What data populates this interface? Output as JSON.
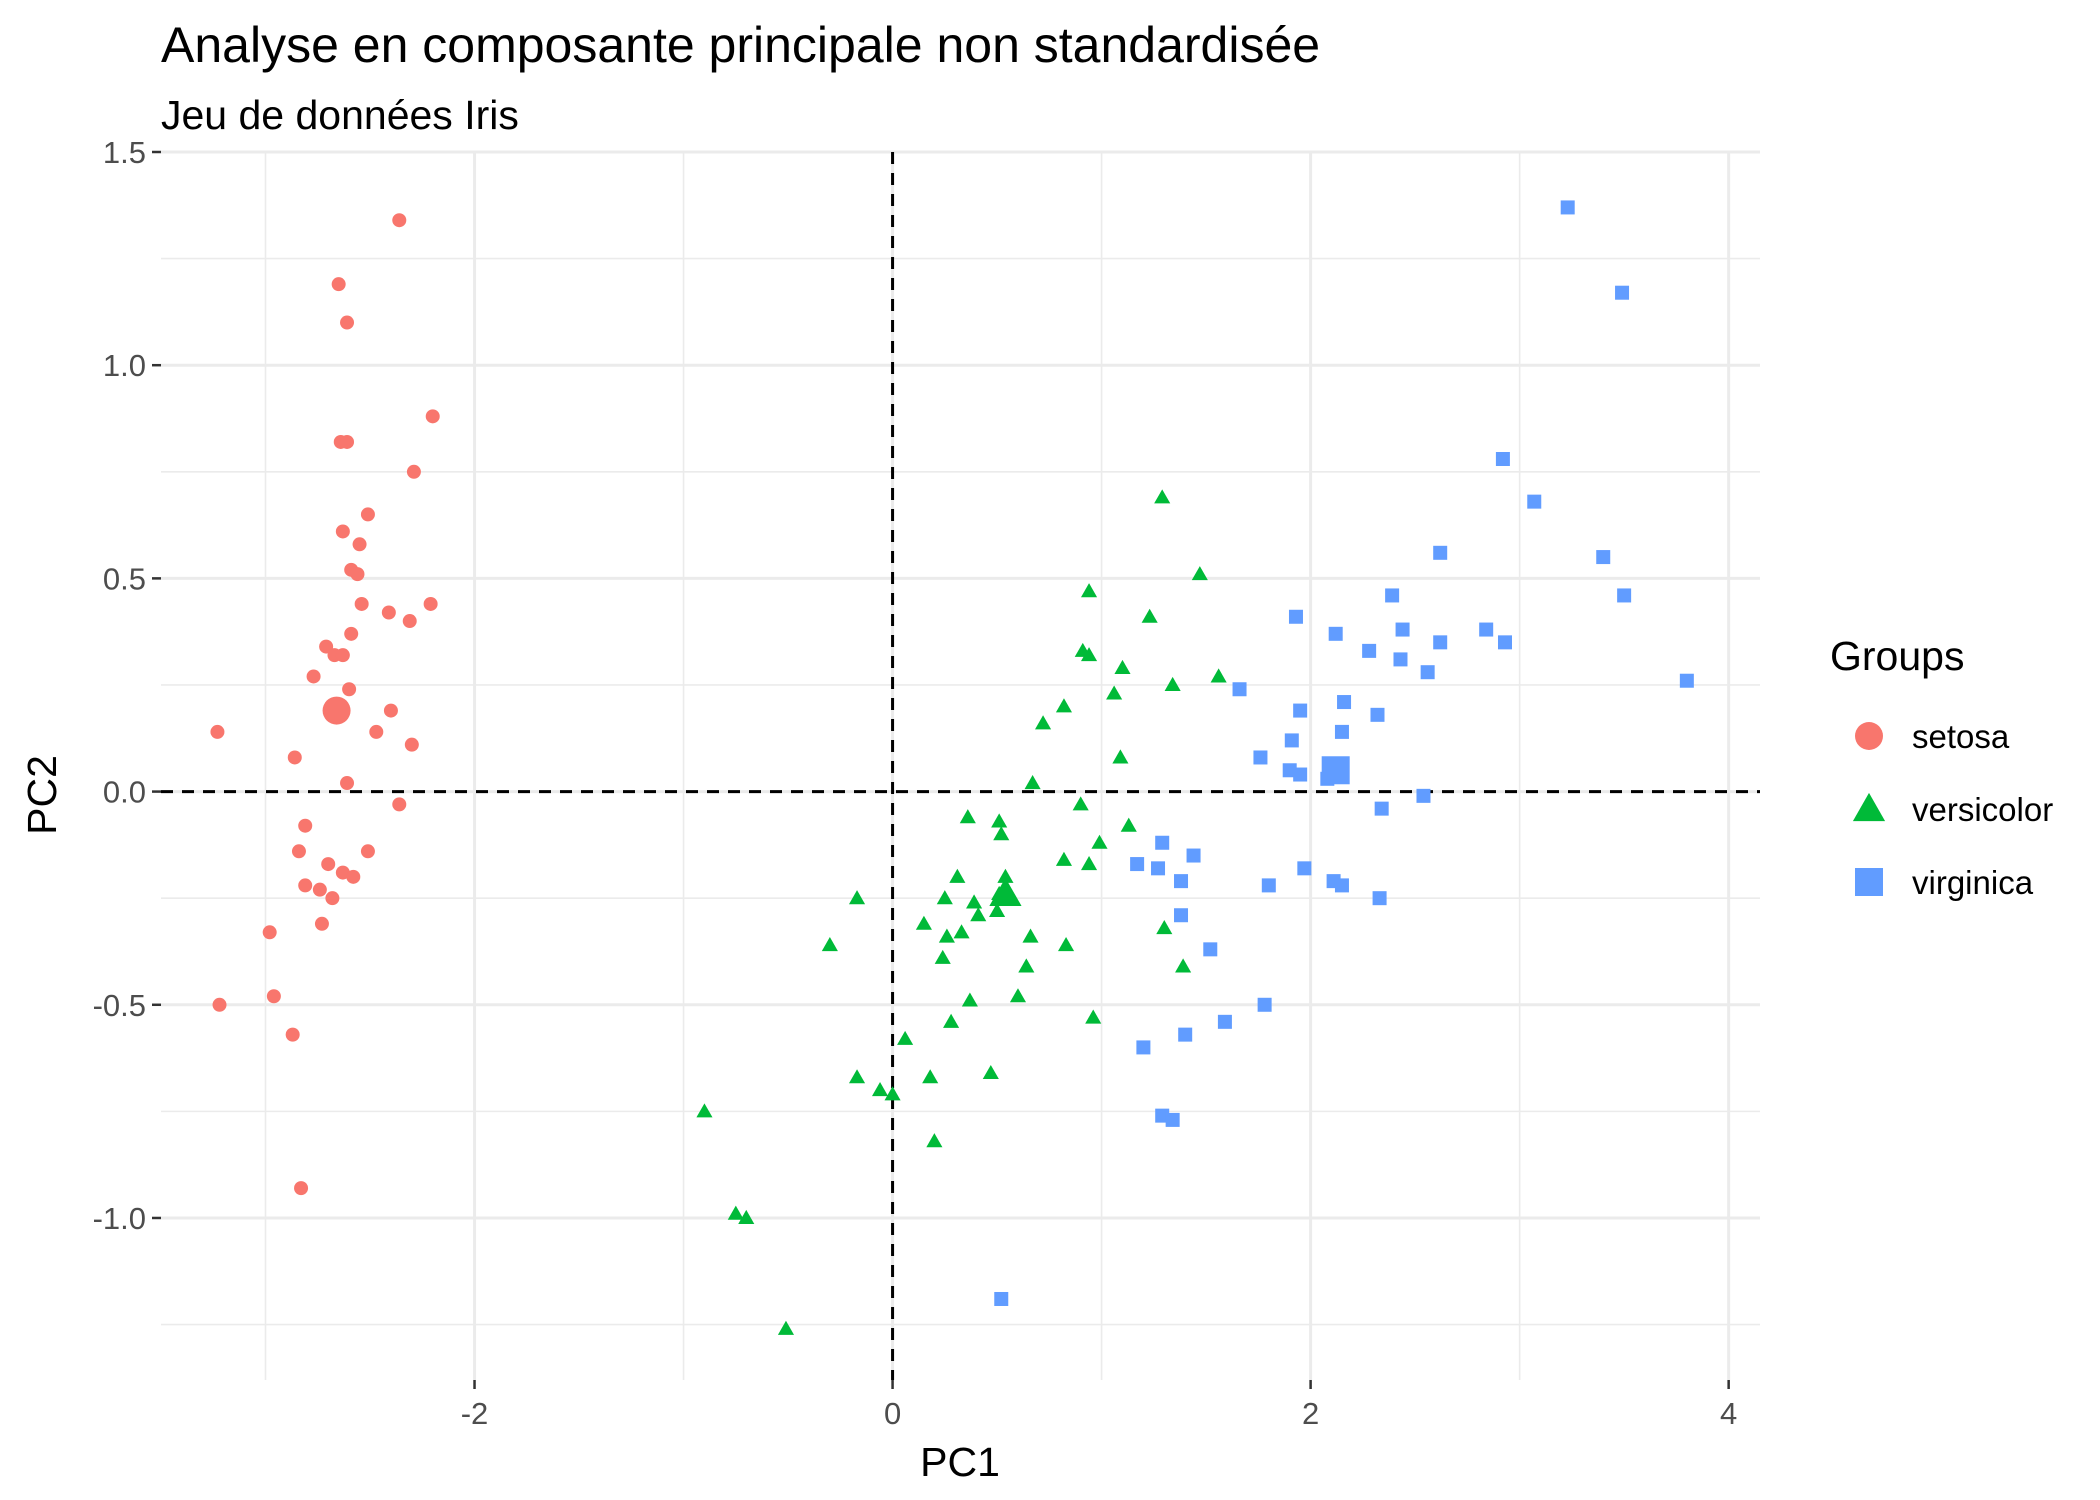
{
  "chart_data": {
    "type": "scatter",
    "title": "Analyse en composante principale non standardisée",
    "subtitle": "Jeu de données Iris",
    "xlabel": "PC1",
    "ylabel": "PC2",
    "xlim": [
      -3.5,
      4.15
    ],
    "ylim": [
      -1.38,
      1.5
    ],
    "x_ticks": [
      -2,
      0,
      2,
      4
    ],
    "x_tick_labels": [
      "-2",
      "0",
      "2",
      "4"
    ],
    "y_ticks": [
      -1.0,
      -0.5,
      0.0,
      0.5,
      1.0,
      1.5
    ],
    "y_tick_labels": [
      "-1.0",
      "-0.5",
      "0.0",
      "0.5",
      "1.0",
      "1.5"
    ],
    "grid": true,
    "reference_lines": {
      "x": 0,
      "y": 0,
      "style": "dashed"
    },
    "legend": {
      "title": "Groups",
      "position": "right"
    },
    "series": [
      {
        "name": "setosa",
        "shape": "circle",
        "color": "#F8766D",
        "centroid": [
          -2.66,
          0.19
        ],
        "points": [
          [
            -2.36,
            1.34
          ],
          [
            -2.65,
            1.19
          ],
          [
            -2.61,
            1.1
          ],
          [
            -2.2,
            0.88
          ],
          [
            -2.64,
            0.82
          ],
          [
            -2.61,
            0.82
          ],
          [
            -2.29,
            0.75
          ],
          [
            -2.51,
            0.65
          ],
          [
            -2.63,
            0.61
          ],
          [
            -2.55,
            0.58
          ],
          [
            -2.59,
            0.52
          ],
          [
            -2.56,
            0.51
          ],
          [
            -2.21,
            0.44
          ],
          [
            -2.54,
            0.44
          ],
          [
            -2.41,
            0.42
          ],
          [
            -2.31,
            0.4
          ],
          [
            -2.59,
            0.37
          ],
          [
            -2.71,
            0.34
          ],
          [
            -2.67,
            0.32
          ],
          [
            -2.63,
            0.32
          ],
          [
            -2.77,
            0.27
          ],
          [
            -2.6,
            0.24
          ],
          [
            -2.4,
            0.19
          ],
          [
            -2.47,
            0.14
          ],
          [
            -3.23,
            0.14
          ],
          [
            -2.3,
            0.11
          ],
          [
            -2.86,
            0.08
          ],
          [
            -2.61,
            0.02
          ],
          [
            -2.36,
            -0.03
          ],
          [
            -2.81,
            -0.08
          ],
          [
            -2.84,
            -0.14
          ],
          [
            -2.51,
            -0.14
          ],
          [
            -2.7,
            -0.17
          ],
          [
            -2.63,
            -0.19
          ],
          [
            -2.58,
            -0.2
          ],
          [
            -2.81,
            -0.22
          ],
          [
            -2.74,
            -0.23
          ],
          [
            -2.68,
            -0.25
          ],
          [
            -2.73,
            -0.31
          ],
          [
            -2.98,
            -0.33
          ],
          [
            -2.96,
            -0.48
          ],
          [
            -3.22,
            -0.5
          ],
          [
            -2.87,
            -0.57
          ],
          [
            -2.83,
            -0.93
          ]
        ]
      },
      {
        "name": "versicolor",
        "shape": "triangle",
        "color": "#00BA38",
        "centroid": [
          0.54,
          -0.24
        ],
        "points": [
          [
            1.29,
            0.69
          ],
          [
            1.47,
            0.51
          ],
          [
            0.94,
            0.47
          ],
          [
            1.23,
            0.41
          ],
          [
            0.91,
            0.33
          ],
          [
            0.94,
            0.32
          ],
          [
            1.1,
            0.29
          ],
          [
            1.56,
            0.27
          ],
          [
            1.34,
            0.25
          ],
          [
            1.06,
            0.23
          ],
          [
            0.82,
            0.2
          ],
          [
            0.72,
            0.16
          ],
          [
            1.09,
            0.08
          ],
          [
            0.67,
            0.02
          ],
          [
            0.9,
            -0.03
          ],
          [
            1.13,
            -0.08
          ],
          [
            0.99,
            -0.12
          ],
          [
            0.51,
            -0.07
          ],
          [
            0.36,
            -0.06
          ],
          [
            0.52,
            -0.1
          ],
          [
            0.82,
            -0.16
          ],
          [
            0.94,
            -0.17
          ],
          [
            0.54,
            -0.2
          ],
          [
            0.31,
            -0.2
          ],
          [
            0.51,
            -0.24
          ],
          [
            -0.17,
            -0.25
          ],
          [
            0.25,
            -0.25
          ],
          [
            0.39,
            -0.26
          ],
          [
            0.5,
            -0.28
          ],
          [
            0.41,
            -0.29
          ],
          [
            0.15,
            -0.31
          ],
          [
            0.33,
            -0.33
          ],
          [
            0.26,
            -0.34
          ],
          [
            1.3,
            -0.32
          ],
          [
            0.66,
            -0.34
          ],
          [
            -0.3,
            -0.36
          ],
          [
            0.83,
            -0.36
          ],
          [
            0.24,
            -0.39
          ],
          [
            0.64,
            -0.41
          ],
          [
            1.39,
            -0.41
          ],
          [
            0.37,
            -0.49
          ],
          [
            0.6,
            -0.48
          ],
          [
            0.28,
            -0.54
          ],
          [
            0.96,
            -0.53
          ],
          [
            0.06,
            -0.58
          ],
          [
            -0.17,
            -0.67
          ],
          [
            0.47,
            -0.66
          ],
          [
            0.18,
            -0.67
          ],
          [
            -0.06,
            -0.7
          ],
          [
            0.0,
            -0.71
          ],
          [
            0.2,
            -0.82
          ],
          [
            -0.9,
            -0.75
          ],
          [
            -0.75,
            -0.99
          ],
          [
            -0.7,
            -1.0
          ],
          [
            -0.51,
            -1.26
          ]
        ]
      },
      {
        "name": "virginica",
        "shape": "square",
        "color": "#619CFF",
        "centroid": [
          2.12,
          0.05
        ],
        "points": [
          [
            3.23,
            1.37
          ],
          [
            3.49,
            1.17
          ],
          [
            2.92,
            0.78
          ],
          [
            3.07,
            0.68
          ],
          [
            2.62,
            0.56
          ],
          [
            3.4,
            0.55
          ],
          [
            3.5,
            0.46
          ],
          [
            2.39,
            0.46
          ],
          [
            1.93,
            0.41
          ],
          [
            2.12,
            0.37
          ],
          [
            2.44,
            0.38
          ],
          [
            2.84,
            0.38
          ],
          [
            2.93,
            0.35
          ],
          [
            2.62,
            0.35
          ],
          [
            2.28,
            0.33
          ],
          [
            2.43,
            0.31
          ],
          [
            2.56,
            0.28
          ],
          [
            3.8,
            0.26
          ],
          [
            1.66,
            0.24
          ],
          [
            2.16,
            0.21
          ],
          [
            1.95,
            0.19
          ],
          [
            2.32,
            0.18
          ],
          [
            2.15,
            0.14
          ],
          [
            1.91,
            0.12
          ],
          [
            1.76,
            0.08
          ],
          [
            1.9,
            0.05
          ],
          [
            1.95,
            0.04
          ],
          [
            2.08,
            0.03
          ],
          [
            2.54,
            -0.01
          ],
          [
            2.34,
            -0.04
          ],
          [
            1.29,
            -0.12
          ],
          [
            1.17,
            -0.17
          ],
          [
            1.44,
            -0.15
          ],
          [
            1.27,
            -0.18
          ],
          [
            1.97,
            -0.18
          ],
          [
            1.38,
            -0.21
          ],
          [
            1.8,
            -0.22
          ],
          [
            2.11,
            -0.21
          ],
          [
            2.15,
            -0.22
          ],
          [
            2.33,
            -0.25
          ],
          [
            1.38,
            -0.29
          ],
          [
            1.52,
            -0.37
          ],
          [
            1.78,
            -0.5
          ],
          [
            1.59,
            -0.54
          ],
          [
            1.4,
            -0.57
          ],
          [
            1.2,
            -0.6
          ],
          [
            1.29,
            -0.76
          ],
          [
            1.34,
            -0.77
          ],
          [
            0.52,
            -1.19
          ]
        ]
      }
    ]
  }
}
